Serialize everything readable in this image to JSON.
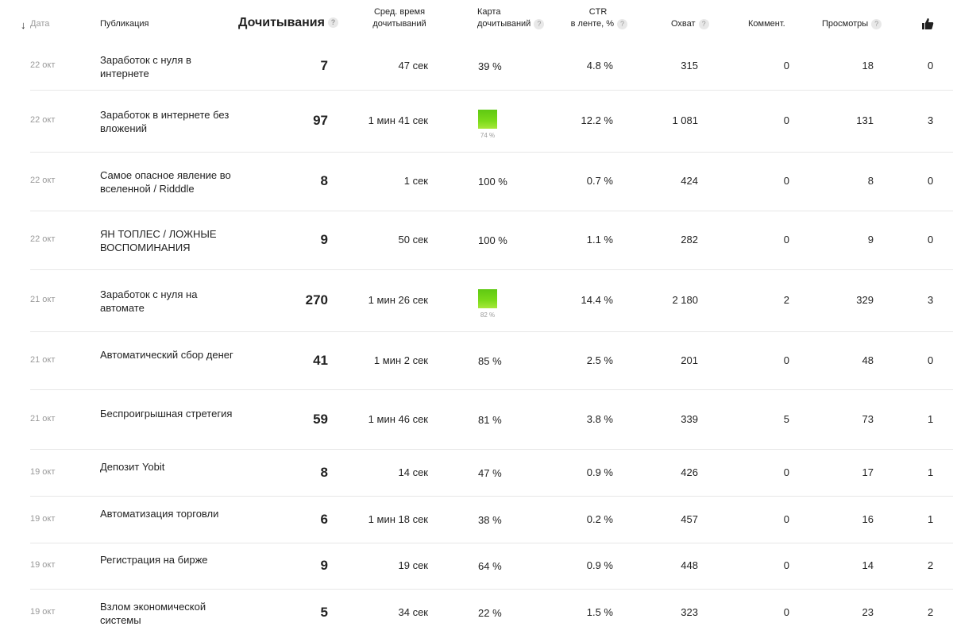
{
  "header": {
    "date": "Дата",
    "publication": "Публикация",
    "reads": "Дочитывания",
    "avg_time_1": "Сред. время",
    "avg_time_2": "дочитываний",
    "map_1": "Карта",
    "map_2": "дочитываний",
    "ctr_1": "CTR",
    "ctr_2": "в ленте, %",
    "reach": "Охват",
    "comments": "Коммент.",
    "views": "Просмотры",
    "help": "?",
    "sort_arrow": "↓",
    "likes_icon": "thumbs-up-icon"
  },
  "rows": [
    {
      "date": "22 окт",
      "title": "Заработок с нуля в интернете",
      "reads": "7",
      "time": "47 сек",
      "map": "39 %",
      "ctr": "4.8 %",
      "reach": "315",
      "comments": "0",
      "views": "18",
      "likes": "0"
    },
    {
      "date": "22 окт",
      "title": "Заработок в интернете без вложений",
      "reads": "97",
      "time": "1 мин 41 сек",
      "map": "74 %",
      "ctr": "12.2 %",
      "reach": "1 081",
      "comments": "0",
      "views": "131",
      "likes": "3"
    },
    {
      "date": "22 окт",
      "title": "Самое опасное явление во вселенной / Ridddle",
      "reads": "8",
      "time": "1 сек",
      "map": "100 %",
      "ctr": "0.7 %",
      "reach": "424",
      "comments": "0",
      "views": "8",
      "likes": "0"
    },
    {
      "date": "22 окт",
      "title": "ЯН ТОПЛЕС / ЛОЖНЫЕ ВОСПОМИНАНИЯ",
      "reads": "9",
      "time": "50 сек",
      "map": "100 %",
      "ctr": "1.1 %",
      "reach": "282",
      "comments": "0",
      "views": "9",
      "likes": "0"
    },
    {
      "date": "21 окт",
      "title": "Заработок с нуля на автомате",
      "reads": "270",
      "time": "1 мин 26 сек",
      "map": "82 %",
      "ctr": "14.4 %",
      "reach": "2 180",
      "comments": "2",
      "views": "329",
      "likes": "3"
    },
    {
      "date": "21 окт",
      "title": "Автоматический сбор денег",
      "reads": "41",
      "time": "1 мин 2 сек",
      "map": "85 %",
      "ctr": "2.5 %",
      "reach": "201",
      "comments": "0",
      "views": "48",
      "likes": "0"
    },
    {
      "date": "21 окт",
      "title": "Беспроигрышная стретегия",
      "reads": "59",
      "time": "1 мин 46 сек",
      "map": "81 %",
      "ctr": "3.8 %",
      "reach": "339",
      "comments": "5",
      "views": "73",
      "likes": "1"
    },
    {
      "date": "19 окт",
      "title": "Депозит Yobit",
      "reads": "8",
      "time": "14 сек",
      "map": "47 %",
      "ctr": "0.9 %",
      "reach": "426",
      "comments": "0",
      "views": "17",
      "likes": "1"
    },
    {
      "date": "19 окт",
      "title": "Автоматизация торговли",
      "reads": "6",
      "time": "1 мин 18 сек",
      "map": "38 %",
      "ctr": "0.2 %",
      "reach": "457",
      "comments": "0",
      "views": "16",
      "likes": "1"
    },
    {
      "date": "19 окт",
      "title": "Регистрация на бирже",
      "reads": "9",
      "time": "19 сек",
      "map": "64 %",
      "ctr": "0.9 %",
      "reach": "448",
      "comments": "0",
      "views": "14",
      "likes": "2"
    },
    {
      "date": "19 окт",
      "title": "Взлом экономической системы",
      "reads": "5",
      "time": "34 сек",
      "map": "22 %",
      "ctr": "1.5 %",
      "reach": "323",
      "comments": "0",
      "views": "23",
      "likes": "2"
    }
  ],
  "map_bar_rows": [
    1,
    4
  ],
  "colors": {
    "bar_green": "#6fd116",
    "muted": "#9a9a9a",
    "separator": "#e7e7e7"
  }
}
